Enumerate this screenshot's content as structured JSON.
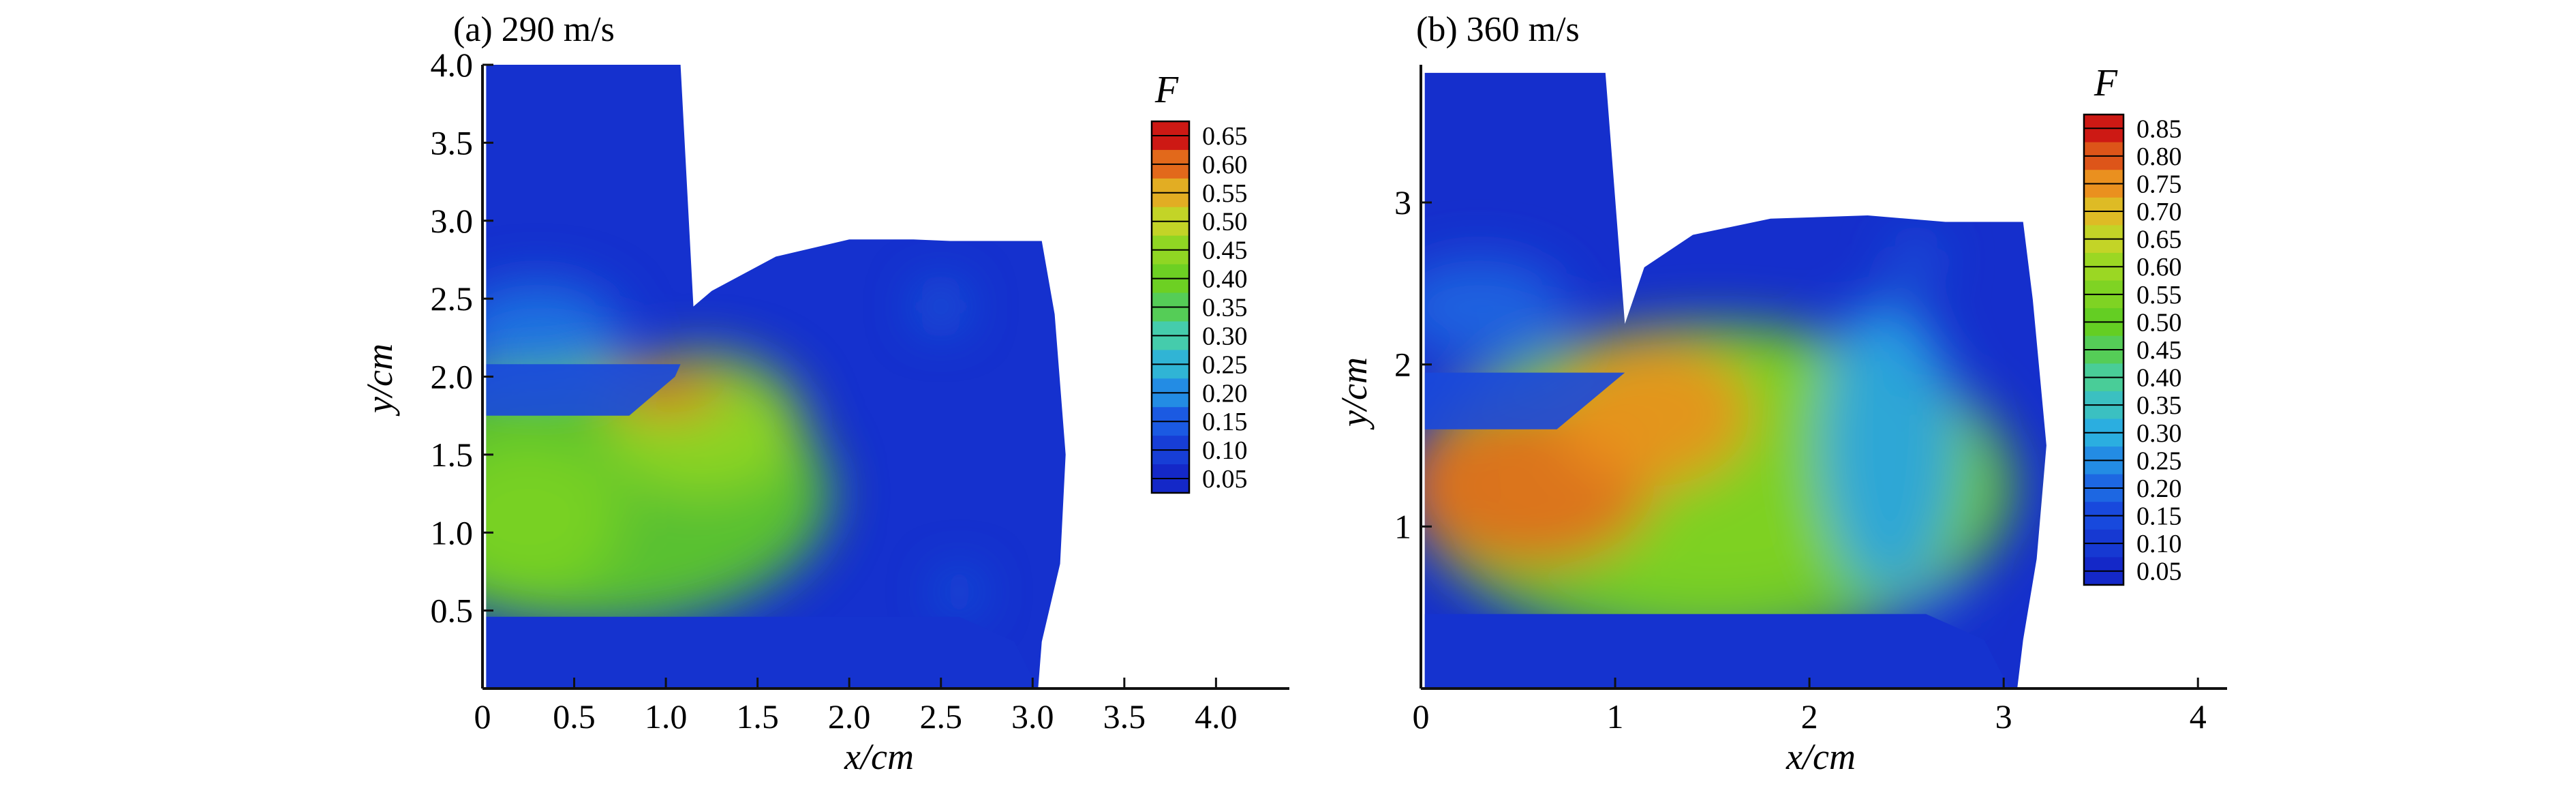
{
  "chart_data": [
    {
      "type": "heatmap",
      "title": "(a) 290 m/s",
      "xlabel": "x/cm",
      "ylabel": "y/cm",
      "xlim": [
        0,
        4.4
      ],
      "ylim": [
        0,
        4.0
      ],
      "xticks": [
        0,
        0.5,
        1.0,
        1.5,
        2.0,
        2.5,
        3.0,
        3.5,
        4.0
      ],
      "xtick_labels": [
        "0",
        "0.5",
        "1.0",
        "1.5",
        "2.0",
        "2.5",
        "3.0",
        "3.5",
        "4.0"
      ],
      "yticks": [
        0.5,
        1.0,
        1.5,
        2.0,
        2.5,
        3.0,
        3.5,
        4.0
      ],
      "ytick_labels": [
        "0.5",
        "1.0",
        "1.5",
        "2.0",
        "2.5",
        "3.0",
        "3.5",
        "4.0"
      ],
      "legend": {
        "title": "F",
        "placement": "top-right",
        "levels": [
          0.65,
          0.6,
          0.55,
          0.5,
          0.45,
          0.4,
          0.35,
          0.3,
          0.25,
          0.2,
          0.15,
          0.1,
          0.05
        ],
        "labels": [
          "0.65",
          "0.60",
          "0.55",
          "0.50",
          "0.45",
          "0.40",
          "0.35",
          "0.30",
          "0.25",
          "0.20",
          "0.15",
          "0.10",
          "0.05"
        ]
      },
      "regions": [
        {
          "shape": "chamber",
          "value": 0.07
        },
        {
          "shape": "ellipse",
          "cx": 0.6,
          "cy": 1.25,
          "rx": 1.3,
          "ry": 0.85,
          "value": 0.38
        },
        {
          "shape": "ellipse",
          "cx": 0.25,
          "cy": 1.1,
          "rx": 0.5,
          "ry": 0.5,
          "value": 0.42
        },
        {
          "shape": "ellipse",
          "cx": 1.2,
          "cy": 1.7,
          "rx": 0.55,
          "ry": 0.45,
          "value": 0.45
        },
        {
          "shape": "ellipse",
          "cx": 1.0,
          "cy": 1.9,
          "rx": 0.32,
          "ry": 0.14,
          "value": 0.6
        },
        {
          "shape": "ellipse",
          "cx": 0.3,
          "cy": 2.3,
          "rx": 0.45,
          "ry": 0.3,
          "value": 0.18
        },
        {
          "shape": "ellipse",
          "cx": 2.5,
          "cy": 2.45,
          "rx": 0.12,
          "ry": 0.12,
          "value": 0.18
        },
        {
          "shape": "ellipse",
          "cx": 2.6,
          "cy": 0.62,
          "rx": 0.1,
          "ry": 0.1,
          "value": 0.18
        }
      ]
    },
    {
      "type": "heatmap",
      "title": "(b) 360 m/s",
      "xlabel": "x/cm",
      "ylabel": "y/cm",
      "xlim": [
        0,
        4.15
      ],
      "ylim": [
        0,
        3.85
      ],
      "xticks": [
        0,
        1,
        2,
        3,
        4
      ],
      "xtick_labels": [
        "0",
        "1",
        "2",
        "3",
        "4"
      ],
      "yticks": [
        1,
        2,
        3
      ],
      "ytick_labels": [
        "1",
        "2",
        "3"
      ],
      "legend": {
        "title": "F",
        "placement": "top-right",
        "levels": [
          0.85,
          0.8,
          0.75,
          0.7,
          0.65,
          0.6,
          0.55,
          0.5,
          0.45,
          0.4,
          0.35,
          0.3,
          0.25,
          0.2,
          0.15,
          0.1,
          0.05
        ],
        "labels": [
          "0.85",
          "0.80",
          "0.75",
          "0.70",
          "0.65",
          "0.60",
          "0.55",
          "0.50",
          "0.45",
          "0.40",
          "0.35",
          "0.30",
          "0.25",
          "0.20",
          "0.15",
          "0.10",
          "0.05"
        ]
      },
      "regions": [
        {
          "shape": "chamber",
          "value": 0.07
        },
        {
          "shape": "ellipse",
          "cx": 1.5,
          "cy": 1.25,
          "rx": 1.55,
          "ry": 1.0,
          "value": 0.52
        },
        {
          "shape": "ellipse",
          "cx": 1.5,
          "cy": 1.35,
          "rx": 1.1,
          "ry": 0.8,
          "value": 0.55
        },
        {
          "shape": "ellipse",
          "cx": 0.55,
          "cy": 1.25,
          "rx": 0.65,
          "ry": 0.5,
          "value": 0.78
        },
        {
          "shape": "ellipse",
          "cx": 1.2,
          "cy": 1.7,
          "rx": 0.5,
          "ry": 0.45,
          "value": 0.75
        },
        {
          "shape": "ellipse",
          "cx": 2.4,
          "cy": 1.5,
          "rx": 0.35,
          "ry": 0.9,
          "value": 0.28
        },
        {
          "shape": "ellipse",
          "cx": 0.3,
          "cy": 2.35,
          "rx": 0.45,
          "ry": 0.3,
          "value": 0.2
        },
        {
          "shape": "ellipse",
          "cx": 2.55,
          "cy": 2.65,
          "rx": 0.12,
          "ry": 0.12,
          "value": 0.2
        },
        {
          "shape": "ellipse",
          "cx": 2.65,
          "cy": 0.55,
          "rx": 0.1,
          "ry": 0.1,
          "value": 0.2
        }
      ]
    }
  ]
}
